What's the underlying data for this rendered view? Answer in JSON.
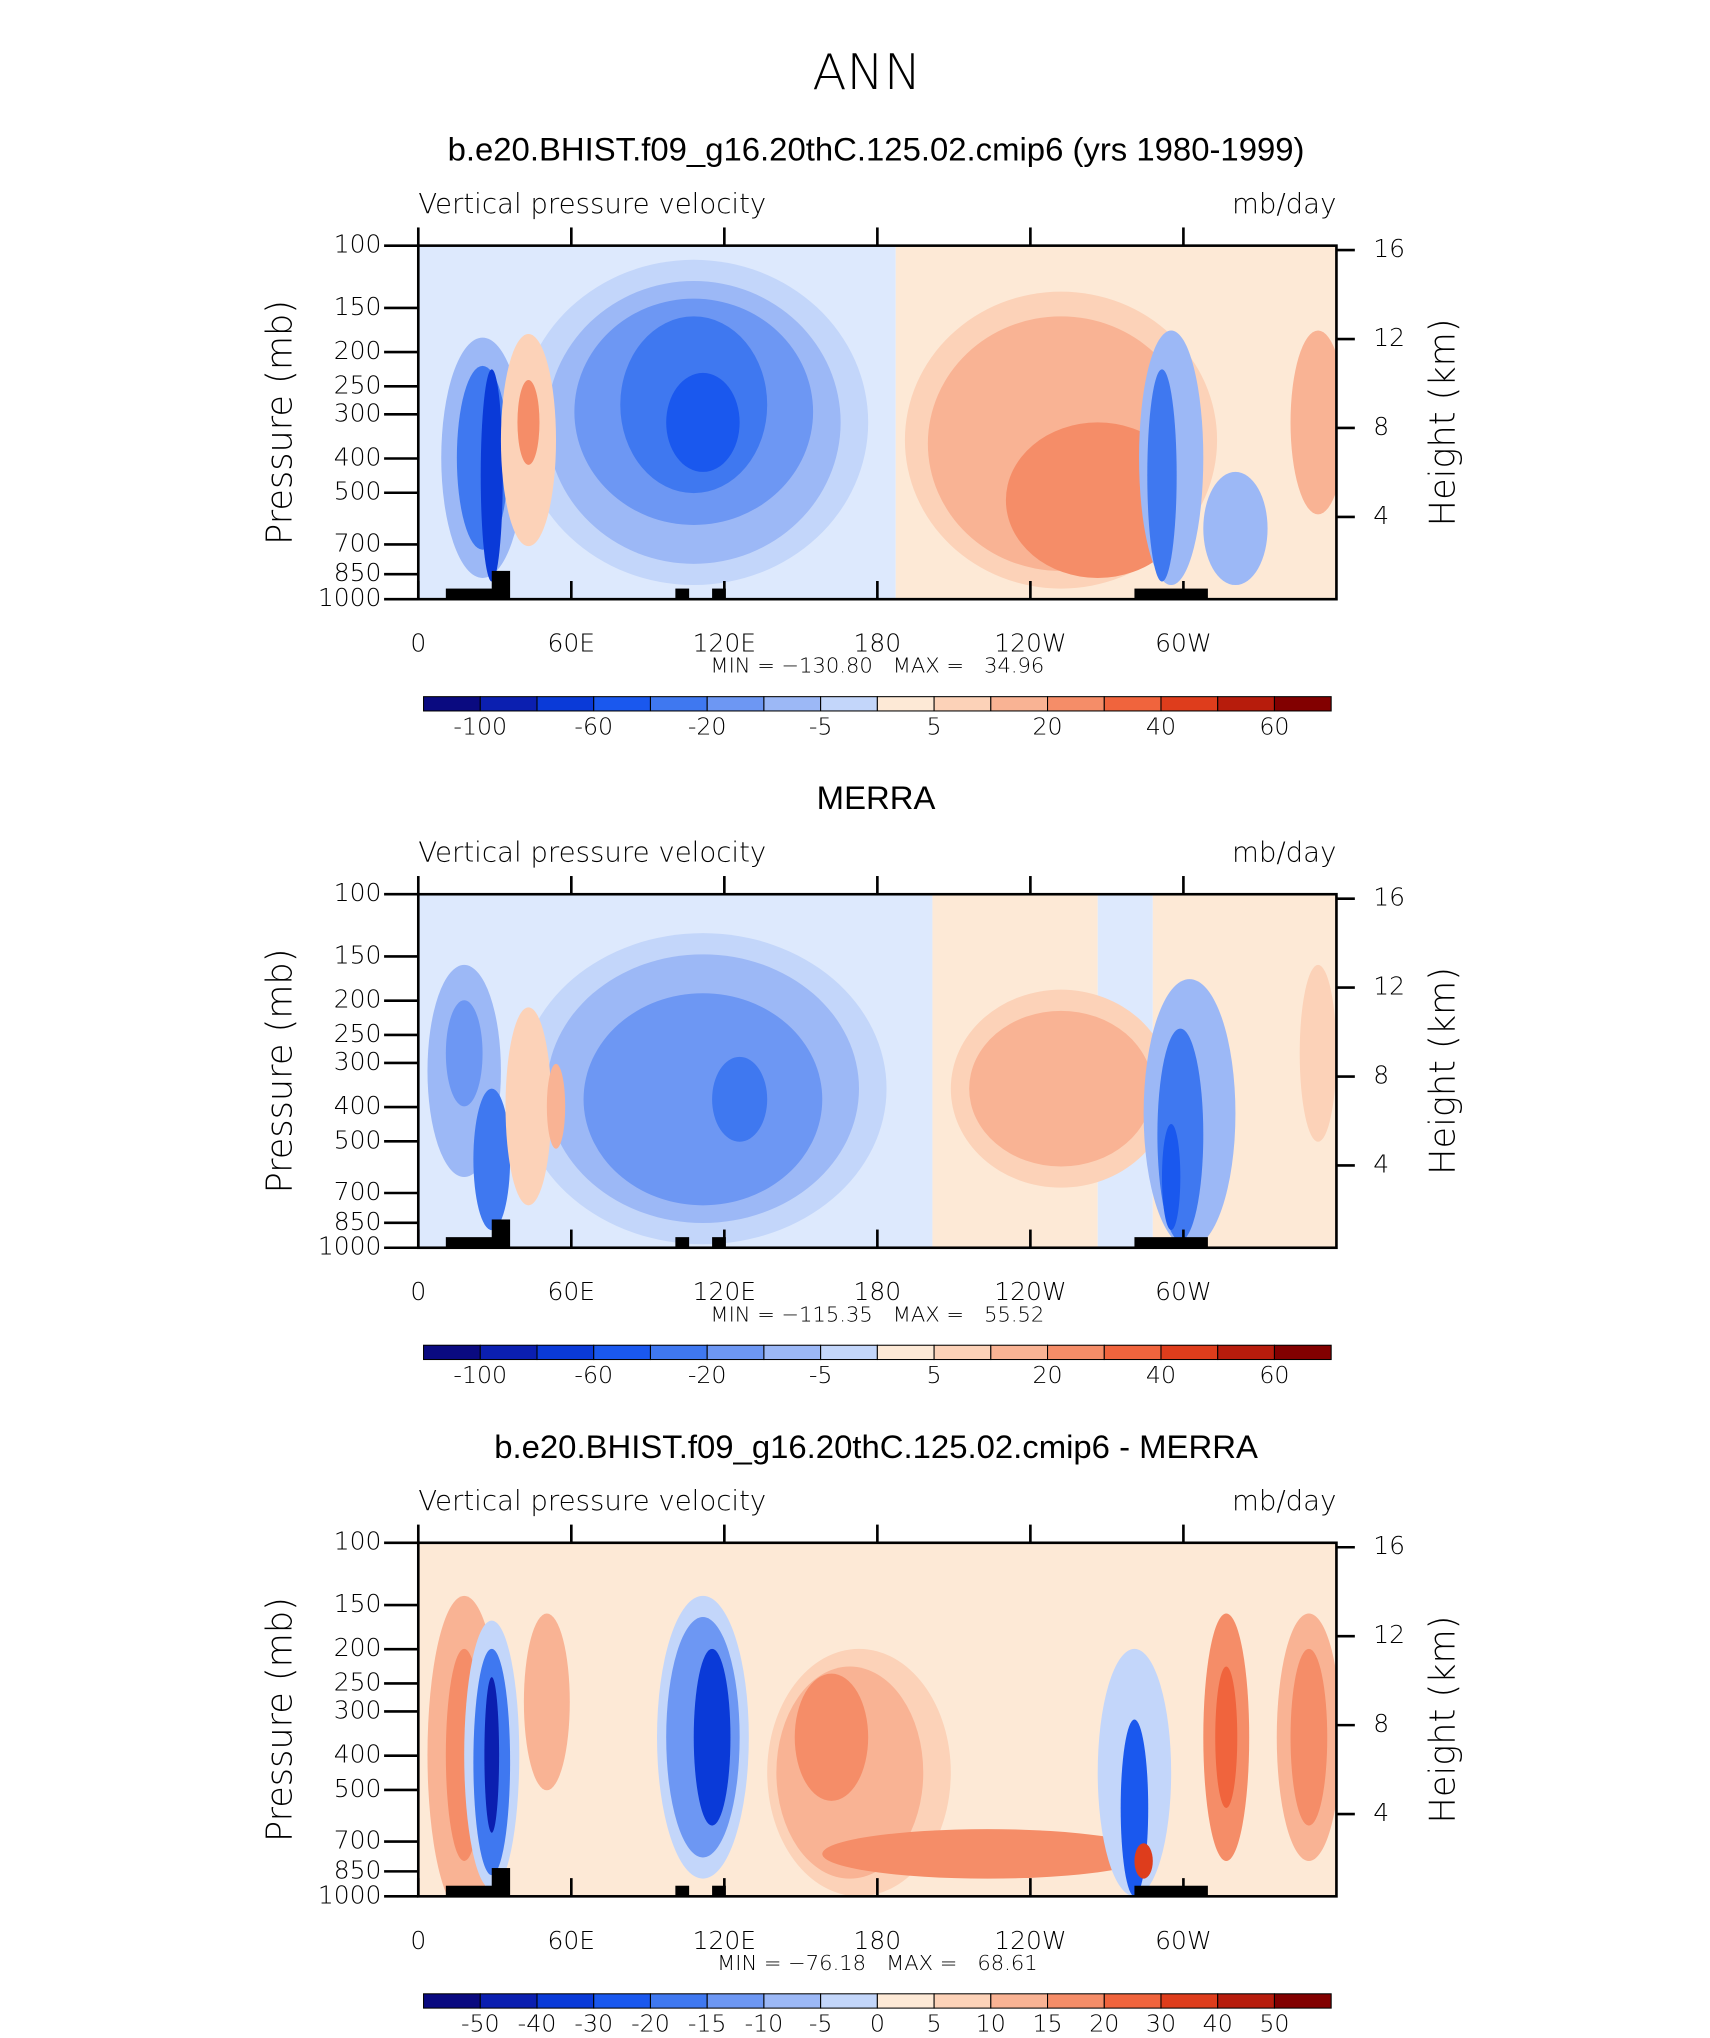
{
  "title": "ANN",
  "panels": [
    {
      "chart_data": {
        "type": "contour",
        "title": "b.e20.BHIST.f09_g16.20thC.125.02.cmip6 (yrs 1980-1999)",
        "left_label": "Vertical pressure velocity",
        "right_label": "mb/day",
        "y_label": "Pressure (mb)",
        "y2_label": "Height (km)",
        "yscale": "log",
        "ylim": [
          1000,
          100
        ],
        "yticks": [
          100,
          150,
          200,
          250,
          300,
          400,
          500,
          700,
          850,
          1000
        ],
        "y2lim": [
          0.3,
          16.2
        ],
        "y2ticks": [
          4,
          8,
          12,
          16
        ],
        "xlim": [
          0,
          360
        ],
        "xticks": [
          0,
          {
            "value": 60,
            "label": "60E"
          },
          {
            "value": 120,
            "label": "120E"
          },
          180,
          {
            "value": 240,
            "label": "120W"
          },
          {
            "value": 300,
            "label": "60W"
          }
        ],
        "stats": "MIN = −130.80   MAX =   34.96",
        "colorbar": {
          "colors": [
            "#0a0a80",
            "#0b1fb0",
            "#0a3ad8",
            "#1a58ee",
            "#3f78f0",
            "#6d97f3",
            "#9cb8f6",
            "#c3d6fa",
            "#dde9fd",
            "#fde9d6",
            "#fcd2b8",
            "#f9b394",
            "#f58d68",
            "#f0643d",
            "#de3d1c",
            "#b71c0c",
            "#820000"
          ],
          "labels": [
            -100,
            -60,
            -20,
            -5,
            5,
            20,
            40,
            60
          ]
        }
      }
    },
    {
      "chart_data": {
        "type": "contour",
        "title": "MERRA",
        "left_label": "Vertical pressure velocity",
        "right_label": "mb/day",
        "y_label": "Pressure (mb)",
        "y2_label": "Height (km)",
        "yscale": "log",
        "ylim": [
          1000,
          100
        ],
        "yticks": [
          100,
          150,
          200,
          250,
          300,
          400,
          500,
          700,
          850,
          1000
        ],
        "y2lim": [
          0.3,
          16.2
        ],
        "y2ticks": [
          4,
          8,
          12,
          16
        ],
        "xlim": [
          0,
          360
        ],
        "xticks": [
          0,
          {
            "value": 60,
            "label": "60E"
          },
          {
            "value": 120,
            "label": "120E"
          },
          180,
          {
            "value": 240,
            "label": "120W"
          },
          {
            "value": 300,
            "label": "60W"
          }
        ],
        "stats": "MIN = −115.35   MAX =   55.52",
        "colorbar": {
          "colors": [
            "#0a0a80",
            "#0b1fb0",
            "#0a3ad8",
            "#1a58ee",
            "#3f78f0",
            "#6d97f3",
            "#9cb8f6",
            "#c3d6fa",
            "#dde9fd",
            "#fde9d6",
            "#fcd2b8",
            "#f9b394",
            "#f58d68",
            "#f0643d",
            "#de3d1c",
            "#b71c0c",
            "#820000"
          ],
          "labels": [
            -100,
            -60,
            -20,
            -5,
            5,
            20,
            40,
            60
          ]
        }
      }
    },
    {
      "chart_data": {
        "type": "contour",
        "title": "b.e20.BHIST.f09_g16.20thC.125.02.cmip6 - MERRA",
        "left_label": "Vertical pressure velocity",
        "right_label": "mb/day",
        "y_label": "Pressure (mb)",
        "y2_label": "Height (km)",
        "yscale": "log",
        "ylim": [
          1000,
          100
        ],
        "yticks": [
          100,
          150,
          200,
          250,
          300,
          400,
          500,
          700,
          850,
          1000
        ],
        "y2lim": [
          0.3,
          16.2
        ],
        "y2ticks": [
          4,
          8,
          12,
          16
        ],
        "xlim": [
          0,
          360
        ],
        "xticks": [
          0,
          {
            "value": 60,
            "label": "60E"
          },
          {
            "value": 120,
            "label": "120E"
          },
          180,
          {
            "value": 240,
            "label": "120W"
          },
          {
            "value": 300,
            "label": "60W"
          }
        ],
        "stats": "MIN = −76.18   MAX =   68.61",
        "colorbar": {
          "colors": [
            "#0a0a80",
            "#0b1fb0",
            "#0a3ad8",
            "#1a58ee",
            "#3f78f0",
            "#6d97f3",
            "#9cb8f6",
            "#c3d6fa",
            "#dde9fd",
            "#fde9d6",
            "#fcd2b8",
            "#f9b394",
            "#f58d68",
            "#f0643d",
            "#de3d1c",
            "#b71c0c",
            "#820000"
          ],
          "labels": [
            -50,
            -40,
            -30,
            -20,
            -15,
            -10,
            -5,
            0,
            5,
            10,
            15,
            20,
            30,
            40,
            50
          ]
        }
      }
    }
  ]
}
